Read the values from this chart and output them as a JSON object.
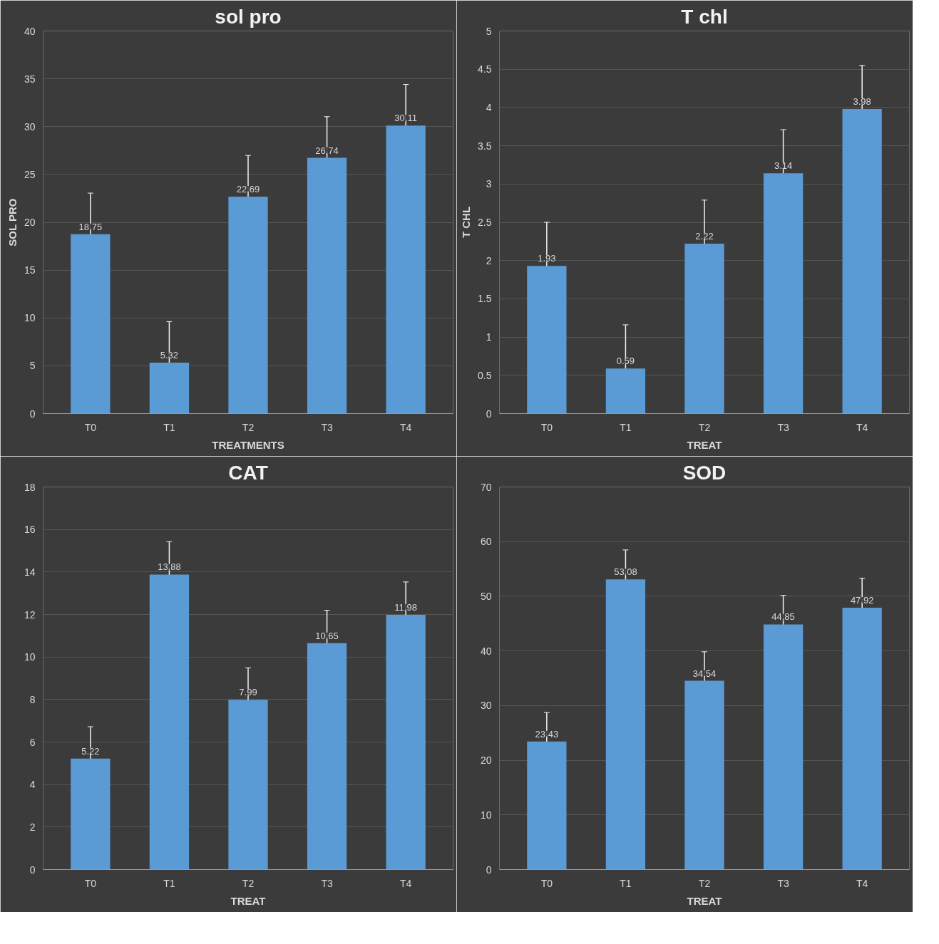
{
  "chart_data": [
    {
      "type": "bar",
      "title": "sol pro",
      "xlabel": "TREATMENTS",
      "ylabel": "SOL PRO",
      "categories": [
        "T0",
        "T1",
        "T2",
        "T3",
        "T4"
      ],
      "values": [
        18.75,
        5.32,
        22.69,
        26.74,
        30.11
      ],
      "errors": [
        4.3,
        4.3,
        4.3,
        4.3,
        4.3
      ],
      "color": "#5b9bd5",
      "ylim": [
        0,
        40
      ],
      "yticks": [
        0,
        5,
        10,
        15,
        20,
        25,
        30,
        35,
        40
      ],
      "grid": "y",
      "data_labels": true
    },
    {
      "type": "bar",
      "title": "T chl",
      "xlabel": "TREAT",
      "ylabel": "T CHL",
      "categories": [
        "T0",
        "T1",
        "T2",
        "T3",
        "T4"
      ],
      "values": [
        1.93,
        0.59,
        2.22,
        3.14,
        3.98
      ],
      "errors": [
        0.57,
        0.57,
        0.57,
        0.57,
        0.57
      ],
      "color": "#5b9bd5",
      "ylim": [
        0,
        5
      ],
      "yticks": [
        0,
        0.5,
        1,
        1.5,
        2,
        2.5,
        3,
        3.5,
        4,
        4.5,
        5
      ],
      "grid": "y",
      "data_labels": true
    },
    {
      "type": "bar",
      "title": "CAT",
      "xlabel": "TREAT",
      "categories": [
        "T0",
        "T1",
        "T2",
        "T3",
        "T4"
      ],
      "values": [
        5.22,
        13.88,
        7.99,
        10.65,
        11.98
      ],
      "errors": [
        1.5,
        1.55,
        1.5,
        1.55,
        1.55
      ],
      "color": "#5b9bd5",
      "ylim": [
        0,
        18
      ],
      "yticks": [
        0,
        2,
        4,
        6,
        8,
        10,
        12,
        14,
        16,
        18
      ],
      "grid": "y",
      "data_labels": true
    },
    {
      "type": "bar",
      "title": "SOD",
      "xlabel": "TREAT",
      "categories": [
        "T0",
        "T1",
        "T2",
        "T3",
        "T4"
      ],
      "values": [
        23.43,
        53.08,
        34.54,
        44.85,
        47.92
      ],
      "errors": [
        5.3,
        5.4,
        5.3,
        5.3,
        5.4
      ],
      "color": "#5b9bd5",
      "ylim": [
        0,
        70
      ],
      "yticks": [
        0,
        10,
        20,
        30,
        40,
        50,
        60,
        70
      ],
      "grid": "y",
      "data_labels": true
    }
  ]
}
